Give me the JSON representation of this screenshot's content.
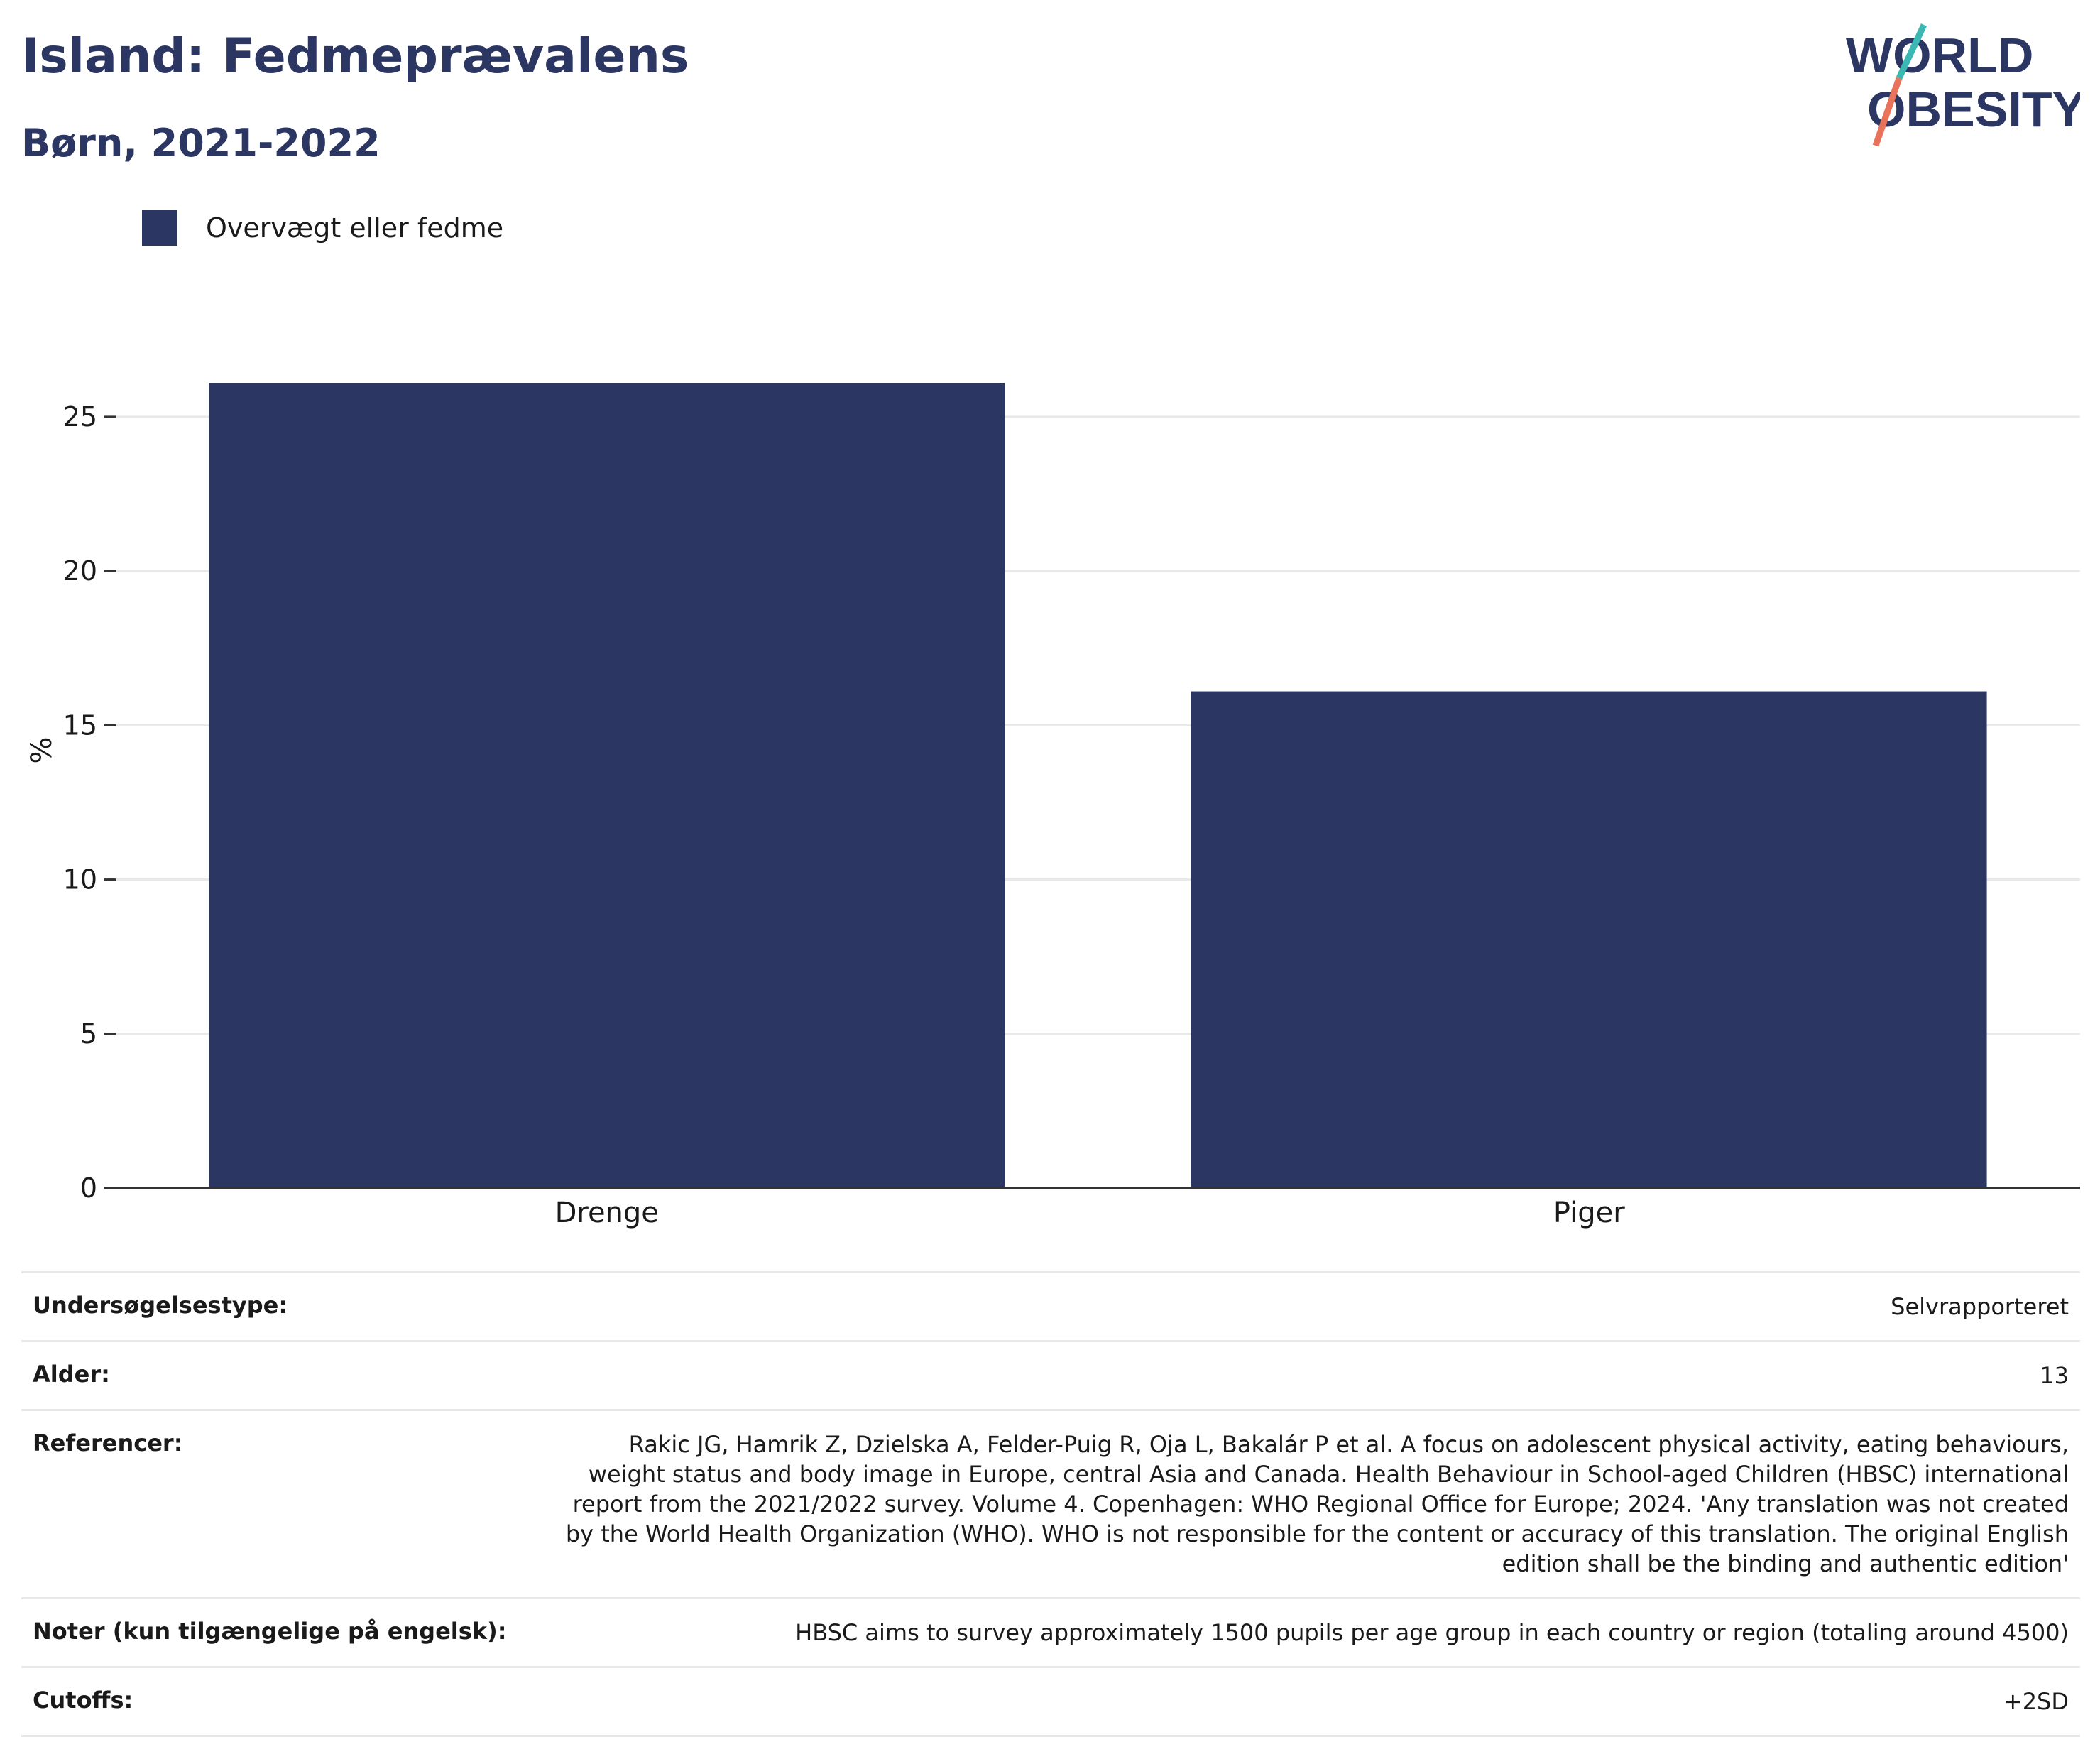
{
  "header": {
    "title": "Island: Fedmeprævalens",
    "subtitle": "Børn, 2021-2022",
    "logo_line1": "WORLD",
    "logo_line2": "OBESITY"
  },
  "colors": {
    "bar": "#2b3663",
    "title": "#2b3663",
    "logo_teal": "#3bb8b3",
    "logo_coral": "#e8735a"
  },
  "chart_data": {
    "type": "bar",
    "title": "Island: Fedmeprævalens",
    "subtitle": "Børn, 2021-2022",
    "categories": [
      "Drenge",
      "Piger"
    ],
    "series": [
      {
        "name": "Overvægt eller fedme",
        "values": [
          26.1,
          16.1
        ]
      }
    ],
    "xlabel": "",
    "ylabel": "%",
    "ylim": [
      0,
      27
    ],
    "yticks": [
      0,
      5,
      10,
      15,
      20,
      25
    ],
    "grid": true,
    "legend_position": "top-left"
  },
  "meta": [
    {
      "key": "Undersøgelsestype:",
      "value": "Selvrapporteret"
    },
    {
      "key": "Alder:",
      "value": "13"
    },
    {
      "key": "Referencer:",
      "value": "Rakic JG, Hamrik Z, Dzielska A, Felder-Puig R, Oja L, Bakalár P et al. A focus on adolescent physical activity, eating behaviours, weight status and body image in Europe, central Asia and Canada. Health Behaviour in School-aged Children (HBSC) international report from the 2021/2022 survey. Volume 4. Copenhagen: WHO Regional Office for Europe; 2024. 'Any translation was not created by the World Health Organization (WHO). WHO is not responsible for the content or accuracy of this translation. The original English edition shall be the binding and authentic edition'"
    },
    {
      "key": "Noter (kun tilgængelige på engelsk):",
      "value": "HBSC aims to survey approximately 1500 pupils per age group in each country or region (totaling around 4500)"
    },
    {
      "key": "Cutoffs:",
      "value": "+2SD"
    }
  ]
}
